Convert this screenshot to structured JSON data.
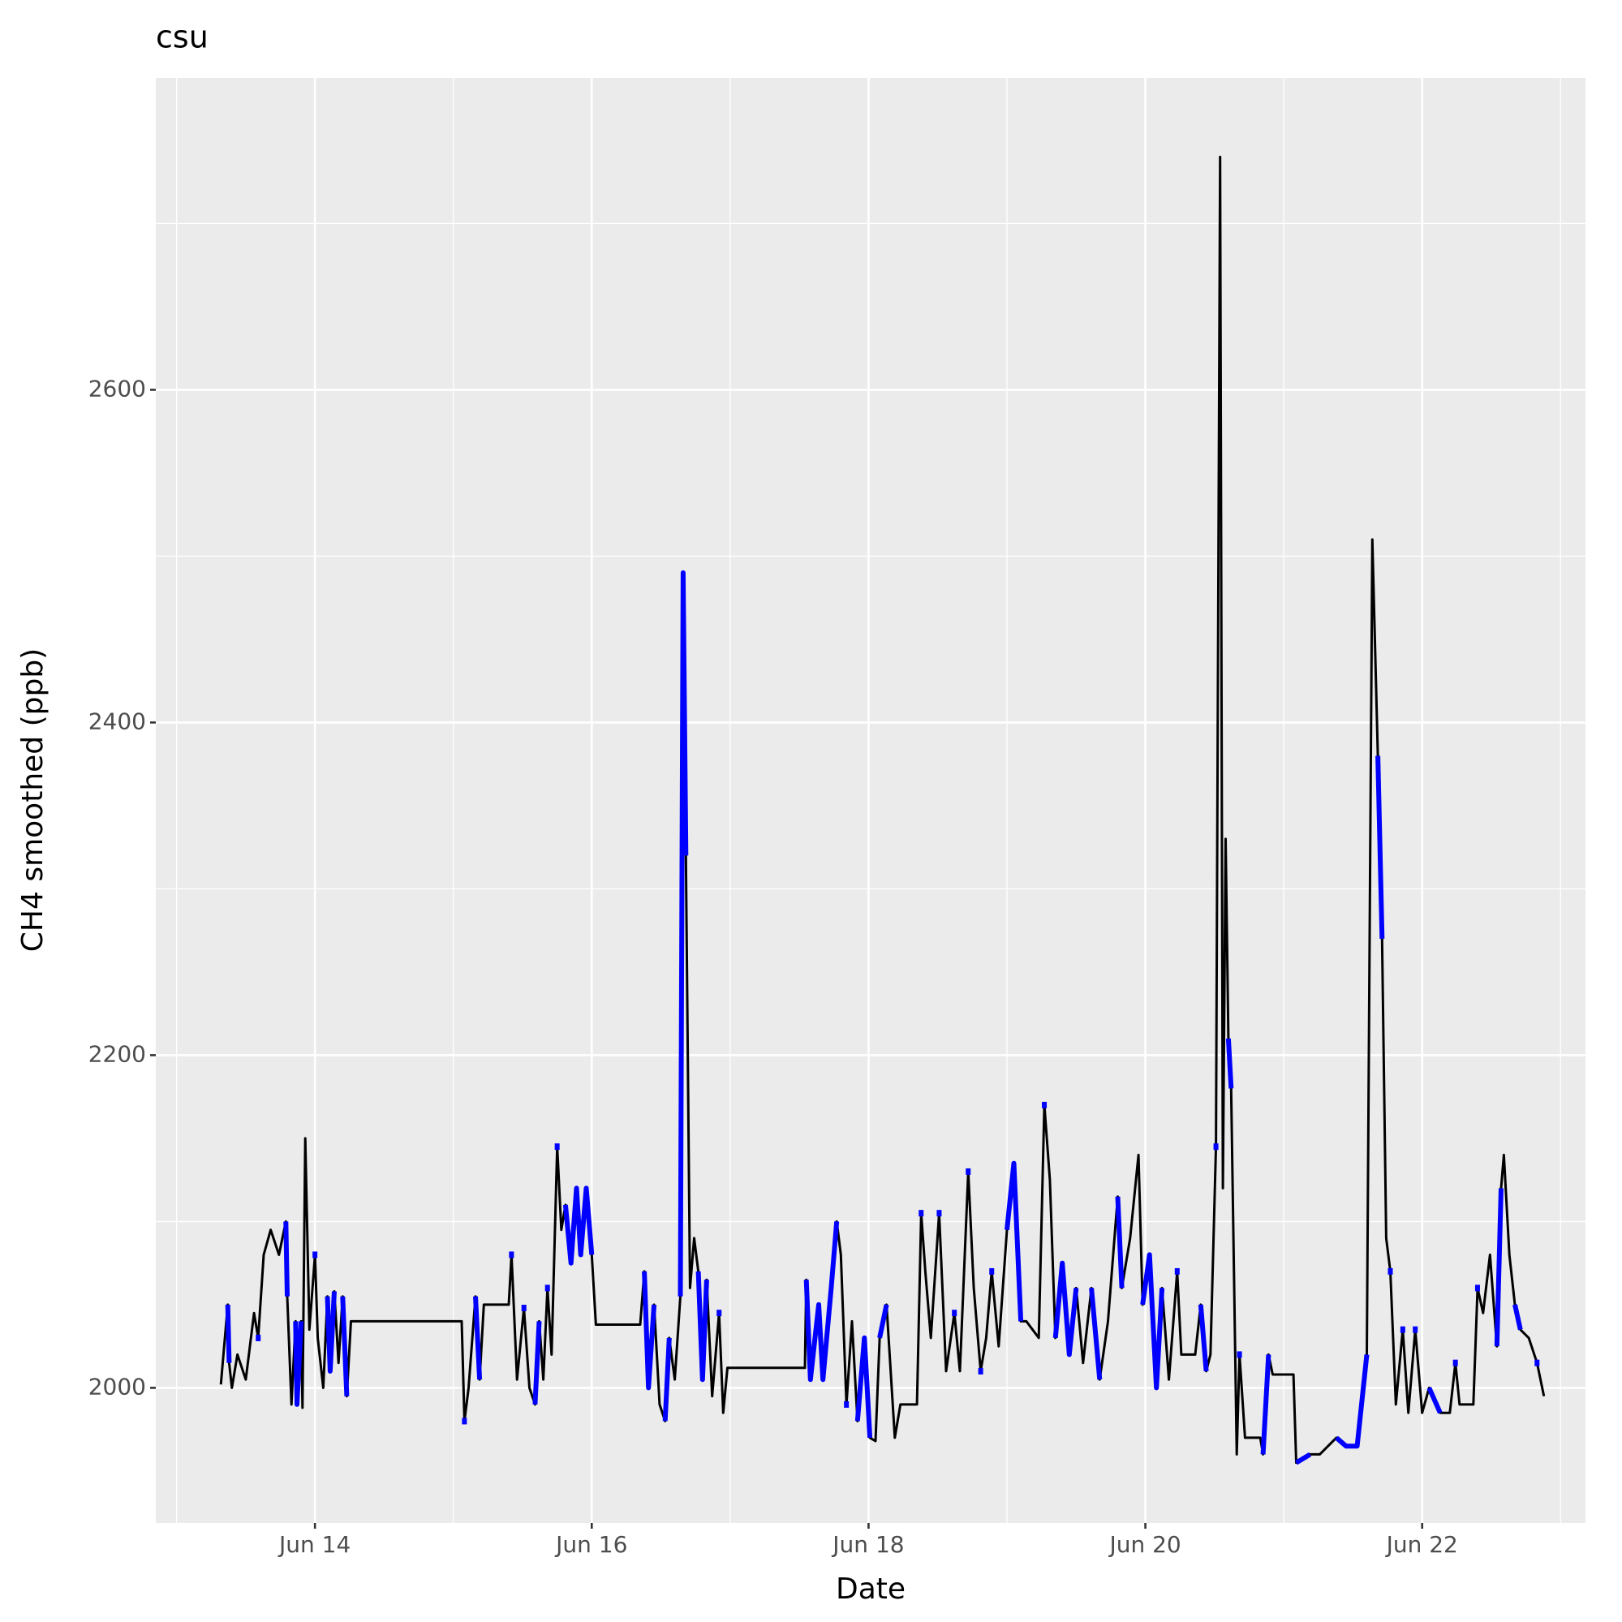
{
  "chart_data": {
    "type": "line",
    "title": "csu",
    "x_label": "Date",
    "y_label": "CH4 smoothed (ppb)",
    "xlim": [
      12.85,
      23.18
    ],
    "ylim": [
      1918.75,
      2787.5
    ],
    "xticks": [
      {
        "value": 14,
        "label": "Jun 14"
      },
      {
        "value": 16,
        "label": "Jun 16"
      },
      {
        "value": 18,
        "label": "Jun 18"
      },
      {
        "value": 20,
        "label": "Jun 20"
      },
      {
        "value": 22,
        "label": "Jun 22"
      }
    ],
    "yticks": [
      2000,
      2200,
      2400,
      2600
    ],
    "grid": true,
    "x": [
      13.32,
      13.37,
      13.38,
      13.4,
      13.44,
      13.5,
      13.56,
      13.59,
      13.63,
      13.68,
      13.74,
      13.79,
      13.8,
      13.83,
      13.86,
      13.87,
      13.9,
      13.91,
      13.93,
      13.96,
      14.0,
      14.02,
      14.06,
      14.09,
      14.11,
      14.14,
      14.17,
      14.2,
      14.23,
      14.26,
      15.06,
      15.08,
      15.11,
      15.16,
      15.19,
      15.22,
      15.4,
      15.42,
      15.46,
      15.51,
      15.55,
      15.59,
      15.62,
      15.65,
      15.68,
      15.71,
      15.75,
      15.78,
      15.81,
      15.85,
      15.89,
      15.92,
      15.96,
      16.0,
      16.03,
      16.35,
      16.38,
      16.41,
      16.45,
      16.49,
      16.53,
      16.56,
      16.6,
      16.64,
      16.66,
      16.68,
      16.71,
      16.74,
      16.77,
      16.8,
      16.83,
      16.87,
      16.92,
      16.95,
      16.98,
      17.54,
      17.55,
      17.58,
      17.64,
      17.67,
      17.73,
      17.77,
      17.8,
      17.84,
      17.88,
      17.92,
      17.97,
      18.01,
      18.05,
      18.08,
      18.13,
      18.19,
      18.23,
      18.35,
      18.38,
      18.41,
      18.45,
      18.51,
      18.56,
      18.62,
      18.66,
      18.72,
      18.76,
      18.81,
      18.85,
      18.89,
      18.94,
      19.0,
      19.05,
      19.1,
      19.14,
      19.23,
      19.27,
      19.31,
      19.35,
      19.4,
      19.45,
      19.5,
      19.55,
      19.61,
      19.67,
      19.73,
      19.8,
      19.83,
      19.89,
      19.95,
      19.98,
      20.03,
      20.08,
      20.12,
      20.17,
      20.23,
      20.26,
      20.36,
      20.4,
      20.44,
      20.47,
      20.51,
      20.54,
      20.56,
      20.58,
      20.6,
      20.62,
      20.66,
      20.68,
      20.72,
      20.83,
      20.85,
      20.89,
      20.92,
      21.07,
      21.09,
      21.19,
      21.26,
      21.38,
      21.45,
      21.53,
      21.6,
      21.64,
      21.68,
      21.71,
      21.74,
      21.77,
      21.81,
      21.86,
      21.9,
      21.95,
      22.0,
      22.05,
      22.13,
      22.2,
      22.24,
      22.27,
      22.37,
      22.4,
      22.44,
      22.49,
      22.54,
      22.57,
      22.59,
      22.63,
      22.67,
      22.71,
      22.77,
      22.83,
      22.88
    ],
    "series": [
      {
        "color": "#000000",
        "values": [
          2002,
          2050,
          2015,
          2000,
          2020,
          2005,
          2045,
          2030,
          2080,
          2095,
          2080,
          2100,
          2055,
          1990,
          2040,
          1990,
          2040,
          1988,
          2150,
          2035,
          2080,
          2030,
          2000,
          2055,
          2010,
          2058,
          2015,
          2055,
          1995,
          2040,
          2040,
          1980,
          2000,
          2055,
          2005,
          2050,
          2050,
          2080,
          2005,
          2048,
          2000,
          1990,
          2040,
          2005,
          2060,
          2020,
          2145,
          2095,
          2110,
          2075,
          2120,
          2080,
          2120,
          2080,
          2038,
          2038,
          2070,
          2000,
          2050,
          1990,
          1980,
          2030,
          2005,
          2055,
          2490,
          2320,
          2060,
          2090,
          2070,
          2005,
          2065,
          1995,
          2045,
          1985,
          2012,
          2012,
          2065,
          2005,
          2050,
          2005,
          2060,
          2100,
          2080,
          1990,
          2040,
          1980,
          2030,
          1970,
          1968,
          2030,
          2050,
          1970,
          1990,
          1990,
          2105,
          2070,
          2030,
          2105,
          2010,
          2045,
          2010,
          2130,
          2060,
          2010,
          2030,
          2070,
          2025,
          2095,
          2135,
          2040,
          2040,
          2030,
          2170,
          2125,
          2030,
          2075,
          2020,
          2060,
          2015,
          2060,
          2005,
          2040,
          2115,
          2060,
          2090,
          2140,
          2050,
          2080,
          2000,
          2060,
          2005,
          2070,
          2020,
          2020,
          2050,
          2010,
          2020,
          2145,
          2740,
          2120,
          2330,
          2210,
          2180,
          1960,
          2020,
          1970,
          1970,
          1960,
          2020,
          2008,
          2008,
          1955,
          1960,
          1960,
          1970,
          1965,
          1965,
          2020,
          2510,
          2380,
          2270,
          2090,
          2070,
          1990,
          2035,
          1985,
          2035,
          1985,
          2000,
          1985,
          1985,
          2015,
          1990,
          1990,
          2060,
          2045,
          2080,
          2025,
          2120,
          2140,
          2080,
          2050,
          2035,
          2030,
          2015,
          1995
        ]
      },
      {
        "color": "#0000ff",
        "values": [
          null,
          2050,
          2015,
          null,
          null,
          null,
          null,
          2030,
          null,
          null,
          null,
          2100,
          2055,
          null,
          2040,
          1990,
          2040,
          null,
          null,
          null,
          2080,
          null,
          null,
          2055,
          2010,
          2058,
          null,
          2055,
          1995,
          null,
          null,
          1980,
          null,
          2055,
          2005,
          null,
          null,
          2080,
          null,
          2048,
          null,
          1990,
          2040,
          null,
          2060,
          null,
          2145,
          null,
          2110,
          2075,
          2120,
          2080,
          2120,
          2080,
          null,
          null,
          2070,
          2000,
          2050,
          null,
          1980,
          2030,
          null,
          2055,
          2490,
          2320,
          null,
          null,
          2070,
          2005,
          2065,
          null,
          2045,
          null,
          null,
          null,
          2065,
          2005,
          2050,
          2005,
          2060,
          2100,
          null,
          1990,
          null,
          1980,
          2030,
          1970,
          null,
          2030,
          2050,
          null,
          null,
          null,
          2105,
          null,
          null,
          2105,
          null,
          2045,
          null,
          2130,
          null,
          2010,
          null,
          2070,
          null,
          2095,
          2135,
          2040,
          null,
          null,
          2170,
          null,
          2030,
          2075,
          2020,
          2060,
          null,
          2060,
          2005,
          null,
          2115,
          2060,
          null,
          null,
          2050,
          2080,
          2000,
          2060,
          null,
          2070,
          null,
          null,
          2050,
          2010,
          null,
          2145,
          null,
          null,
          null,
          2210,
          2180,
          null,
          2020,
          null,
          null,
          1960,
          2020,
          null,
          null,
          1955,
          1960,
          null,
          1970,
          1965,
          1965,
          2020,
          null,
          2380,
          2270,
          null,
          2070,
          null,
          2035,
          null,
          2035,
          null,
          2000,
          1985,
          null,
          2015,
          null,
          null,
          2060,
          null,
          null,
          2025,
          2120,
          null,
          null,
          2050,
          2035,
          null,
          2015,
          null
        ]
      }
    ]
  }
}
